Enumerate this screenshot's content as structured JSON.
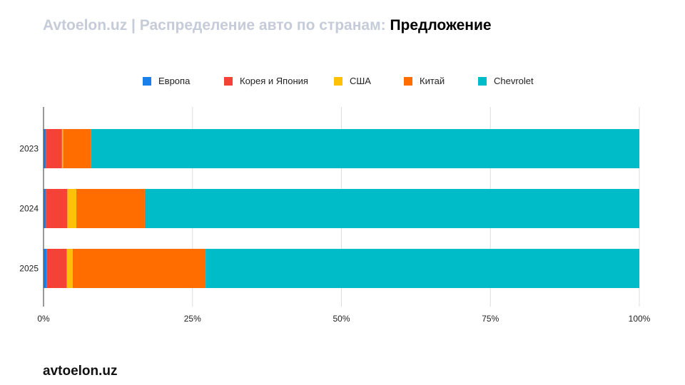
{
  "header": {
    "title_prefix": "Avtoelon.uz | Распределение авто по странам: ",
    "title_highlight": "Предложение"
  },
  "footer": {
    "brand": "avtoelon.uz"
  },
  "chart_data": {
    "type": "bar",
    "orientation": "horizontal",
    "stacked": "percent",
    "categories": [
      "2023",
      "2024",
      "2025"
    ],
    "series": [
      {
        "name": "Европа",
        "color": "#1a7fe8",
        "values": [
          0.4,
          0.4,
          0.5
        ]
      },
      {
        "name": "Корея и Япония",
        "color": "#f44336",
        "values": [
          2.7,
          3.6,
          3.4
        ]
      },
      {
        "name": "США",
        "color": "#ffc107",
        "values": [
          0.2,
          1.5,
          1.0
        ]
      },
      {
        "name": "Китай",
        "color": "#ff6d00",
        "values": [
          4.7,
          11.5,
          22.3
        ]
      },
      {
        "name": "Chevrolet",
        "color": "#00bcc8",
        "values": [
          92.0,
          83.0,
          72.8
        ]
      }
    ],
    "xlim": [
      0,
      100
    ],
    "xticks": [
      "0%",
      "25%",
      "50%",
      "75%",
      "100%"
    ],
    "grid": true,
    "legend": "top"
  }
}
